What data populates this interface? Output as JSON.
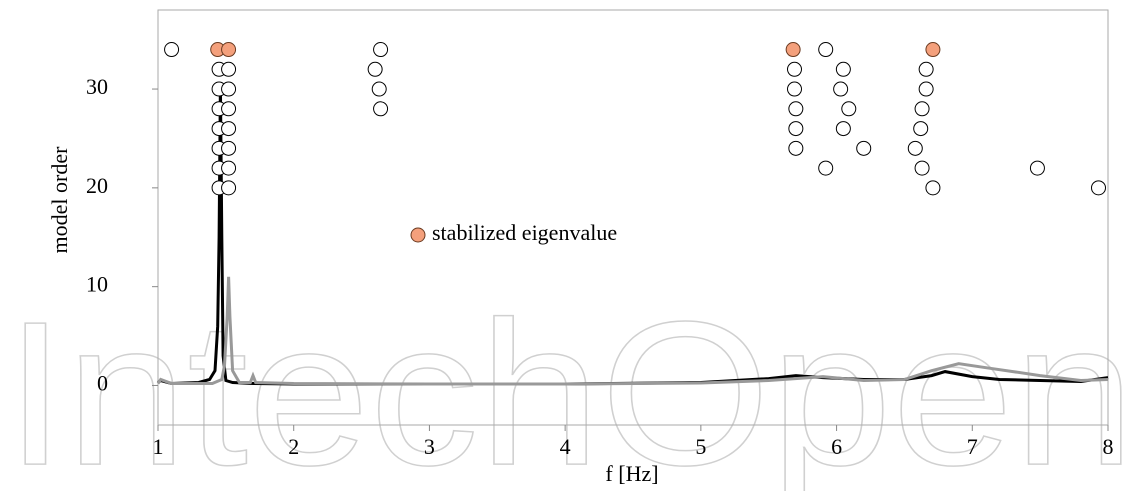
{
  "chart_data": {
    "type": "stabilization",
    "xlabel": "f [Hz]",
    "ylabel": "model order",
    "xlim": [
      1,
      8
    ],
    "ylim": [
      -4,
      38
    ],
    "xticks": [
      1,
      2,
      3,
      4,
      5,
      6,
      7,
      8
    ],
    "yticks": [
      0,
      10,
      20,
      30
    ],
    "watermark": "IntechOpen",
    "points": {
      "color": "#ffffff",
      "x": [
        1.1,
        5.92,
        1.45,
        1.52,
        2.6,
        5.69,
        6.05,
        6.66,
        1.45,
        1.52,
        2.63,
        5.69,
        6.03,
        6.66,
        1.45,
        1.52,
        2.64,
        5.7,
        6.09,
        6.63,
        1.45,
        1.52,
        5.7,
        6.05,
        6.62,
        1.45,
        1.52,
        5.7,
        6.2,
        6.58,
        1.45,
        1.52,
        5.92,
        6.63,
        7.48,
        1.45,
        1.52,
        6.71,
        7.93,
        2.64
      ],
      "y": [
        34,
        34,
        32,
        32,
        32,
        32,
        32,
        32,
        30,
        30,
        30,
        30,
        30,
        30,
        28,
        28,
        28,
        28,
        28,
        28,
        26,
        26,
        26,
        26,
        26,
        24,
        24,
        24,
        24,
        24,
        22,
        22,
        22,
        22,
        22,
        20,
        20,
        20,
        20,
        34
      ]
    },
    "stabilized": {
      "name": "stabilized eigenvalue",
      "color": "#f4a07c",
      "x": [
        1.44,
        1.52,
        5.68,
        6.71
      ],
      "y": [
        34,
        34,
        34,
        34
      ]
    },
    "series": [
      {
        "color": "#000000",
        "x": [
          1,
          1.02,
          1.1,
          1.3,
          1.38,
          1.42,
          1.44,
          1.45,
          1.46,
          1.47,
          1.48,
          1.5,
          1.55,
          1.7,
          2,
          3,
          4,
          5,
          5.5,
          5.7,
          5.9,
          6.2,
          6.5,
          6.7,
          6.8,
          7,
          7.2,
          7.5,
          7.8,
          8
        ],
        "values": [
          0.3,
          0.5,
          0.2,
          0.3,
          0.6,
          1.5,
          6,
          15,
          30.5,
          15,
          3,
          0.5,
          0.3,
          0.2,
          0.15,
          0.15,
          0.15,
          0.3,
          0.7,
          1.0,
          0.8,
          0.6,
          0.6,
          1.0,
          1.4,
          0.9,
          0.6,
          0.5,
          0.4,
          0.8
        ]
      },
      {
        "color": "#999999",
        "x": [
          1,
          1.02,
          1.1,
          1.4,
          1.47,
          1.49,
          1.51,
          1.52,
          1.53,
          1.55,
          1.6,
          1.68,
          1.7,
          1.72,
          2,
          3,
          4,
          5,
          5.5,
          5.8,
          5.9,
          6.2,
          6.5,
          6.7,
          6.9,
          7.1,
          7.3,
          7.5,
          7.8,
          8
        ],
        "values": [
          0.2,
          0.6,
          0.2,
          0.2,
          0.6,
          2,
          7,
          11,
          7,
          1.5,
          0.3,
          0.3,
          1.0,
          0.3,
          0.2,
          0.15,
          0.15,
          0.25,
          0.5,
          0.8,
          0.9,
          0.5,
          0.6,
          1.5,
          2.2,
          1.8,
          1.4,
          1.0,
          0.5,
          0.6
        ]
      }
    ]
  }
}
